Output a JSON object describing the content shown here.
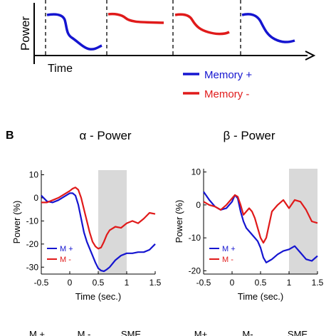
{
  "panel_a": {
    "ylabel": "Power",
    "xlabel": "Time",
    "legend": [
      {
        "label": "Memory +",
        "color": "#1515d0"
      },
      {
        "label": "Memory -",
        "color": "#e01a1a"
      }
    ]
  },
  "panel_b": {
    "letter": "B",
    "bottom_labels_left": [
      "M +",
      "M -",
      "SME"
    ],
    "bottom_labels_right": [
      "M+",
      "M-",
      "SME"
    ]
  },
  "chart_data": [
    {
      "type": "line",
      "panel": "A",
      "schematic": true,
      "series": [
        {
          "name": "Memory +",
          "color": "#1515d0",
          "segments": [
            1,
            4
          ]
        },
        {
          "name": "Memory -",
          "color": "#e01a1a",
          "segments": [
            2,
            3
          ]
        }
      ]
    },
    {
      "type": "line",
      "title": "α - Power",
      "xlabel": "Time (sec.)",
      "ylabel": "Power (%)",
      "xlim": [
        -0.5,
        1.5
      ],
      "ylim": [
        -33,
        12
      ],
      "xticks": [
        -0.5,
        0,
        0.5,
        1,
        1.5
      ],
      "yticks": [
        10,
        0,
        -10,
        -20,
        -30
      ],
      "shaded": [
        0.5,
        1.0
      ],
      "legend": "bottom-left",
      "series": [
        {
          "name": "M +",
          "color": "#1515d0",
          "x": [
            -0.5,
            -0.4,
            -0.3,
            -0.2,
            -0.1,
            0,
            0.05,
            0.1,
            0.15,
            0.2,
            0.25,
            0.3,
            0.35,
            0.4,
            0.45,
            0.5,
            0.55,
            0.6,
            0.65,
            0.7,
            0.8,
            0.9,
            1.0,
            1.1,
            1.2,
            1.3,
            1.4,
            1.5
          ],
          "y": [
            1,
            -1.5,
            -2,
            -1,
            0.5,
            2,
            2,
            1,
            -3,
            -9,
            -15,
            -19,
            -22,
            -25,
            -28,
            -30.5,
            -31.5,
            -31.8,
            -31,
            -30,
            -27,
            -25,
            -24,
            -24,
            -23.5,
            -23.5,
            -22.5,
            -20
          ]
        },
        {
          "name": "M -",
          "color": "#e01a1a",
          "x": [
            -0.5,
            -0.4,
            -0.3,
            -0.2,
            -0.1,
            0,
            0.05,
            0.1,
            0.15,
            0.2,
            0.25,
            0.3,
            0.35,
            0.4,
            0.45,
            0.5,
            0.55,
            0.6,
            0.65,
            0.7,
            0.8,
            0.9,
            1.0,
            1.1,
            1.2,
            1.3,
            1.4,
            1.5
          ],
          "y": [
            -2,
            -2,
            -1,
            0,
            1.5,
            3,
            4,
            4.5,
            3.5,
            0,
            -5,
            -10,
            -15,
            -19,
            -21,
            -22,
            -21.5,
            -19,
            -16,
            -14,
            -12.5,
            -13,
            -11,
            -10,
            -11,
            -9,
            -6.5,
            -7
          ]
        }
      ]
    },
    {
      "type": "line",
      "title": "β - Power",
      "xlabel": "Time (sec.)",
      "ylabel": "Power (%)",
      "xlim": [
        -0.5,
        1.5
      ],
      "ylim": [
        -21,
        11
      ],
      "xticks": [
        -0.5,
        0,
        0.5,
        1,
        1.5
      ],
      "yticks": [
        10,
        0,
        -10,
        -20
      ],
      "shaded": [
        1.0,
        1.5
      ],
      "legend": "bottom-left",
      "series": [
        {
          "name": "M +",
          "color": "#1515d0",
          "x": [
            -0.5,
            -0.4,
            -0.3,
            -0.2,
            -0.1,
            0,
            0.05,
            0.1,
            0.15,
            0.2,
            0.25,
            0.3,
            0.35,
            0.4,
            0.45,
            0.5,
            0.55,
            0.6,
            0.65,
            0.7,
            0.8,
            0.9,
            1.0,
            1.1,
            1.2,
            1.3,
            1.4,
            1.5
          ],
          "y": [
            4,
            1.5,
            -0.5,
            -1.5,
            -1,
            1,
            3,
            2,
            -2,
            -5,
            -7,
            -8,
            -9,
            -10,
            -11,
            -13,
            -16,
            -17.5,
            -17,
            -16.5,
            -15,
            -14,
            -13.5,
            -12.5,
            -14.5,
            -16.5,
            -17,
            -15.5
          ]
        },
        {
          "name": "M -",
          "color": "#e01a1a",
          "x": [
            -0.5,
            -0.4,
            -0.3,
            -0.2,
            -0.1,
            0,
            0.05,
            0.1,
            0.15,
            0.2,
            0.25,
            0.3,
            0.35,
            0.4,
            0.45,
            0.5,
            0.55,
            0.6,
            0.65,
            0.7,
            0.8,
            0.9,
            1.0,
            1.1,
            1.2,
            1.3,
            1.4,
            1.5
          ],
          "y": [
            1,
            0,
            -0.5,
            -1.5,
            0,
            2,
            3,
            2.5,
            0,
            -3,
            -2,
            -1,
            -2,
            -4,
            -7,
            -10,
            -11.5,
            -10,
            -6,
            -2,
            0,
            1.5,
            -1,
            1.5,
            1,
            -1.5,
            -5,
            -5.5
          ]
        }
      ]
    }
  ]
}
